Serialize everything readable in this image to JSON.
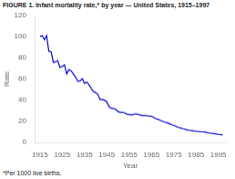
{
  "chart_data": {
    "type": "line",
    "title": "FIGURE 1. Infant mortality rate,* by year — United States, 1915–1997",
    "xlabel": "Year",
    "ylabel": "Rate",
    "annotations": [
      "*Per 1000 live births."
    ],
    "color": "#0000cc",
    "grid": false,
    "xlim": [
      1913,
      1998
    ],
    "ylim": [
      0,
      120
    ],
    "xticks": [
      1915,
      1925,
      1935,
      1945,
      1955,
      1965,
      1975,
      1985,
      1995
    ],
    "yticks": [
      0,
      20,
      40,
      60,
      80,
      100,
      120
    ],
    "x": [
      1915,
      1916,
      1917,
      1918,
      1919,
      1920,
      1921,
      1922,
      1923,
      1924,
      1925,
      1926,
      1927,
      1928,
      1929,
      1930,
      1931,
      1932,
      1933,
      1934,
      1935,
      1936,
      1937,
      1938,
      1939,
      1940,
      1941,
      1942,
      1943,
      1944,
      1945,
      1946,
      1947,
      1948,
      1949,
      1950,
      1951,
      1952,
      1953,
      1954,
      1955,
      1956,
      1957,
      1958,
      1959,
      1960,
      1961,
      1962,
      1963,
      1964,
      1965,
      1966,
      1967,
      1968,
      1969,
      1970,
      1971,
      1972,
      1973,
      1974,
      1975,
      1976,
      1977,
      1978,
      1979,
      1980,
      1981,
      1982,
      1983,
      1984,
      1985,
      1986,
      1987,
      1988,
      1989,
      1990,
      1991,
      1992,
      1993,
      1994,
      1995,
      1996,
      1997
    ],
    "values": [
      99.9,
      101.0,
      97.0,
      100.9,
      86.0,
      85.8,
      75.6,
      76.2,
      77.1,
      70.8,
      71.7,
      73.3,
      64.6,
      68.7,
      67.6,
      64.6,
      61.6,
      57.6,
      58.1,
      60.1,
      55.7,
      57.1,
      54.4,
      51.0,
      48.0,
      47.0,
      45.3,
      40.4,
      40.4,
      39.8,
      38.3,
      33.8,
      32.2,
      32.0,
      31.3,
      29.2,
      28.4,
      28.4,
      27.8,
      26.6,
      26.4,
      26.0,
      26.3,
      27.1,
      26.4,
      26.0,
      25.3,
      25.3,
      25.2,
      24.8,
      24.7,
      23.7,
      22.4,
      21.8,
      20.9,
      20.0,
      19.1,
      18.5,
      17.7,
      16.7,
      16.1,
      15.2,
      14.1,
      13.8,
      13.0,
      12.6,
      11.9,
      11.5,
      11.2,
      10.8,
      10.6,
      10.4,
      10.1,
      10.0,
      9.8,
      9.2,
      8.9,
      8.5,
      8.4,
      8.0,
      7.6,
      7.3,
      7.2
    ]
  }
}
